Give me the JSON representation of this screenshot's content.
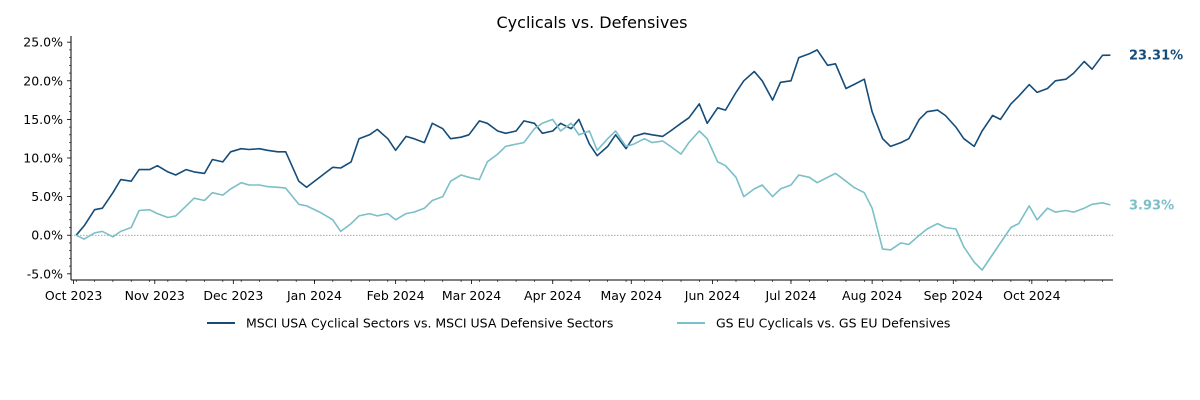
{
  "chart_data": {
    "type": "line",
    "title": "Cyclicals vs. Defensives",
    "xlabel": "",
    "ylabel": "",
    "y_tick_labels": [
      "-5.0%",
      "0.0%",
      "5.0%",
      "10.0%",
      "15.0%",
      "20.0%",
      "25.0%"
    ],
    "y_ticks": [
      -5,
      0,
      5,
      10,
      15,
      20,
      25
    ],
    "ylim": [
      -5.8,
      25.8
    ],
    "x_tick_labels": [
      "Oct 2023",
      "Nov 2023",
      "Dec 2023",
      "Jan 2024",
      "Feb 2024",
      "Mar 2024",
      "Apr 2024",
      "May 2024",
      "Jun 2024",
      "Jul 2024",
      "Aug 2024",
      "Sep 2024",
      "Oct 2024"
    ],
    "x_ticks": [
      "2023-10-01",
      "2023-11-01",
      "2023-12-01",
      "2024-01-01",
      "2024-02-01",
      "2024-03-01",
      "2024-04-01",
      "2024-05-01",
      "2024-06-01",
      "2024-07-01",
      "2024-08-01",
      "2024-09-01",
      "2024-10-01"
    ],
    "xlim": [
      "2023-09-30",
      "2024-11-01"
    ],
    "reference_line": {
      "y": 0,
      "style": "dotted"
    },
    "grid": false,
    "legend_position": "bottom",
    "series": [
      {
        "name": "MSCI USA Cyclical Sectors vs. MSCI USA Defensive Sectors",
        "color": "#154c79",
        "end_label": "23.31%",
        "points": [
          [
            "2023-10-02",
            0.0
          ],
          [
            "2023-10-05",
            1.2
          ],
          [
            "2023-10-09",
            3.3
          ],
          [
            "2023-10-12",
            3.5
          ],
          [
            "2023-10-16",
            5.5
          ],
          [
            "2023-10-19",
            7.2
          ],
          [
            "2023-10-23",
            7.0
          ],
          [
            "2023-10-26",
            8.5
          ],
          [
            "2023-10-30",
            8.5
          ],
          [
            "2023-11-02",
            9.0
          ],
          [
            "2023-11-06",
            8.2
          ],
          [
            "2023-11-09",
            7.8
          ],
          [
            "2023-11-13",
            8.5
          ],
          [
            "2023-11-16",
            8.2
          ],
          [
            "2023-11-20",
            8.0
          ],
          [
            "2023-11-23",
            9.8
          ],
          [
            "2023-11-27",
            9.5
          ],
          [
            "2023-11-30",
            10.8
          ],
          [
            "2023-12-04",
            11.2
          ],
          [
            "2023-12-07",
            11.1
          ],
          [
            "2023-12-11",
            11.2
          ],
          [
            "2023-12-14",
            11.0
          ],
          [
            "2023-12-18",
            10.8
          ],
          [
            "2023-12-21",
            10.8
          ],
          [
            "2023-12-26",
            7.0
          ],
          [
            "2023-12-29",
            6.2
          ],
          [
            "2024-01-03",
            7.5
          ],
          [
            "2024-01-08",
            8.8
          ],
          [
            "2024-01-11",
            8.7
          ],
          [
            "2024-01-15",
            9.5
          ],
          [
            "2024-01-18",
            12.5
          ],
          [
            "2024-01-22",
            13.0
          ],
          [
            "2024-01-25",
            13.7
          ],
          [
            "2024-01-29",
            12.5
          ],
          [
            "2024-02-01",
            11.0
          ],
          [
            "2024-02-05",
            12.8
          ],
          [
            "2024-02-08",
            12.5
          ],
          [
            "2024-02-12",
            12.0
          ],
          [
            "2024-02-15",
            14.5
          ],
          [
            "2024-02-19",
            13.8
          ],
          [
            "2024-02-22",
            12.5
          ],
          [
            "2024-02-26",
            12.7
          ],
          [
            "2024-02-29",
            13.0
          ],
          [
            "2024-03-04",
            14.8
          ],
          [
            "2024-03-07",
            14.5
          ],
          [
            "2024-03-11",
            13.5
          ],
          [
            "2024-03-14",
            13.2
          ],
          [
            "2024-03-18",
            13.5
          ],
          [
            "2024-03-21",
            14.8
          ],
          [
            "2024-03-25",
            14.5
          ],
          [
            "2024-03-28",
            13.2
          ],
          [
            "2024-04-01",
            13.5
          ],
          [
            "2024-04-04",
            14.5
          ],
          [
            "2024-04-08",
            13.8
          ],
          [
            "2024-04-11",
            15.0
          ],
          [
            "2024-04-15",
            11.8
          ],
          [
            "2024-04-18",
            10.3
          ],
          [
            "2024-04-22",
            11.5
          ],
          [
            "2024-04-25",
            13.0
          ],
          [
            "2024-04-29",
            11.2
          ],
          [
            "2024-05-02",
            12.8
          ],
          [
            "2024-05-06",
            13.2
          ],
          [
            "2024-05-09",
            13.0
          ],
          [
            "2024-05-13",
            12.8
          ],
          [
            "2024-05-16",
            13.5
          ],
          [
            "2024-05-20",
            14.5
          ],
          [
            "2024-05-23",
            15.2
          ],
          [
            "2024-05-27",
            17.0
          ],
          [
            "2024-05-30",
            14.5
          ],
          [
            "2024-06-03",
            16.5
          ],
          [
            "2024-06-06",
            16.2
          ],
          [
            "2024-06-10",
            18.5
          ],
          [
            "2024-06-13",
            20.0
          ],
          [
            "2024-06-17",
            21.2
          ],
          [
            "2024-06-20",
            20.0
          ],
          [
            "2024-06-24",
            17.5
          ],
          [
            "2024-06-27",
            19.8
          ],
          [
            "2024-07-01",
            20.0
          ],
          [
            "2024-07-04",
            23.0
          ],
          [
            "2024-07-08",
            23.5
          ],
          [
            "2024-07-11",
            24.0
          ],
          [
            "2024-07-15",
            22.0
          ],
          [
            "2024-07-18",
            22.2
          ],
          [
            "2024-07-22",
            19.0
          ],
          [
            "2024-07-25",
            19.5
          ],
          [
            "2024-07-29",
            20.2
          ],
          [
            "2024-08-01",
            16.0
          ],
          [
            "2024-08-05",
            12.5
          ],
          [
            "2024-08-08",
            11.5
          ],
          [
            "2024-08-12",
            12.0
          ],
          [
            "2024-08-15",
            12.5
          ],
          [
            "2024-08-19",
            15.0
          ],
          [
            "2024-08-22",
            16.0
          ],
          [
            "2024-08-26",
            16.2
          ],
          [
            "2024-08-29",
            15.5
          ],
          [
            "2024-09-02",
            14.0
          ],
          [
            "2024-09-05",
            12.5
          ],
          [
            "2024-09-09",
            11.5
          ],
          [
            "2024-09-12",
            13.5
          ],
          [
            "2024-09-16",
            15.5
          ],
          [
            "2024-09-19",
            15.0
          ],
          [
            "2024-09-23",
            17.0
          ],
          [
            "2024-09-26",
            18.0
          ],
          [
            "2024-09-30",
            19.5
          ],
          [
            "2024-10-03",
            18.5
          ],
          [
            "2024-10-07",
            19.0
          ],
          [
            "2024-10-10",
            20.0
          ],
          [
            "2024-10-14",
            20.2
          ],
          [
            "2024-10-17",
            21.0
          ],
          [
            "2024-10-21",
            22.5
          ],
          [
            "2024-10-24",
            21.5
          ],
          [
            "2024-10-28",
            23.3
          ],
          [
            "2024-10-31",
            23.31
          ]
        ]
      },
      {
        "name": "GS EU Cyclicals vs. GS EU Defensives",
        "color": "#7bbfc8",
        "end_label": "3.93%",
        "points": [
          [
            "2023-10-02",
            0.0
          ],
          [
            "2023-10-05",
            -0.5
          ],
          [
            "2023-10-09",
            0.3
          ],
          [
            "2023-10-12",
            0.5
          ],
          [
            "2023-10-16",
            -0.2
          ],
          [
            "2023-10-19",
            0.5
          ],
          [
            "2023-10-23",
            1.0
          ],
          [
            "2023-10-26",
            3.2
          ],
          [
            "2023-10-30",
            3.3
          ],
          [
            "2023-11-02",
            2.8
          ],
          [
            "2023-11-06",
            2.3
          ],
          [
            "2023-11-09",
            2.5
          ],
          [
            "2023-11-13",
            3.8
          ],
          [
            "2023-11-16",
            4.8
          ],
          [
            "2023-11-20",
            4.5
          ],
          [
            "2023-11-23",
            5.5
          ],
          [
            "2023-11-27",
            5.2
          ],
          [
            "2023-11-30",
            6.0
          ],
          [
            "2023-12-04",
            6.8
          ],
          [
            "2023-12-07",
            6.5
          ],
          [
            "2023-12-11",
            6.5
          ],
          [
            "2023-12-14",
            6.3
          ],
          [
            "2023-12-18",
            6.2
          ],
          [
            "2023-12-21",
            6.1
          ],
          [
            "2023-12-26",
            4.0
          ],
          [
            "2023-12-29",
            3.8
          ],
          [
            "2024-01-03",
            3.0
          ],
          [
            "2024-01-08",
            2.0
          ],
          [
            "2024-01-11",
            0.5
          ],
          [
            "2024-01-15",
            1.5
          ],
          [
            "2024-01-18",
            2.5
          ],
          [
            "2024-01-22",
            2.8
          ],
          [
            "2024-01-25",
            2.5
          ],
          [
            "2024-01-29",
            2.8
          ],
          [
            "2024-02-01",
            2.0
          ],
          [
            "2024-02-05",
            2.8
          ],
          [
            "2024-02-08",
            3.0
          ],
          [
            "2024-02-12",
            3.5
          ],
          [
            "2024-02-15",
            4.5
          ],
          [
            "2024-02-19",
            5.0
          ],
          [
            "2024-02-22",
            7.0
          ],
          [
            "2024-02-26",
            7.8
          ],
          [
            "2024-02-29",
            7.5
          ],
          [
            "2024-03-04",
            7.2
          ],
          [
            "2024-03-07",
            9.5
          ],
          [
            "2024-03-11",
            10.5
          ],
          [
            "2024-03-14",
            11.5
          ],
          [
            "2024-03-18",
            11.8
          ],
          [
            "2024-03-21",
            12.0
          ],
          [
            "2024-03-25",
            13.8
          ],
          [
            "2024-03-28",
            14.5
          ],
          [
            "2024-04-01",
            15.0
          ],
          [
            "2024-04-04",
            13.5
          ],
          [
            "2024-04-08",
            14.5
          ],
          [
            "2024-04-11",
            13.0
          ],
          [
            "2024-04-15",
            13.5
          ],
          [
            "2024-04-18",
            11.0
          ],
          [
            "2024-04-22",
            12.5
          ],
          [
            "2024-04-25",
            13.5
          ],
          [
            "2024-04-29",
            11.5
          ],
          [
            "2024-05-02",
            11.8
          ],
          [
            "2024-05-06",
            12.5
          ],
          [
            "2024-05-09",
            12.0
          ],
          [
            "2024-05-13",
            12.2
          ],
          [
            "2024-05-16",
            11.5
          ],
          [
            "2024-05-20",
            10.5
          ],
          [
            "2024-05-23",
            12.0
          ],
          [
            "2024-05-27",
            13.5
          ],
          [
            "2024-05-30",
            12.5
          ],
          [
            "2024-06-03",
            9.5
          ],
          [
            "2024-06-06",
            9.0
          ],
          [
            "2024-06-10",
            7.5
          ],
          [
            "2024-06-13",
            5.0
          ],
          [
            "2024-06-17",
            6.0
          ],
          [
            "2024-06-20",
            6.5
          ],
          [
            "2024-06-24",
            5.0
          ],
          [
            "2024-06-27",
            6.0
          ],
          [
            "2024-07-01",
            6.5
          ],
          [
            "2024-07-04",
            7.8
          ],
          [
            "2024-07-08",
            7.5
          ],
          [
            "2024-07-11",
            6.8
          ],
          [
            "2024-07-15",
            7.5
          ],
          [
            "2024-07-18",
            8.0
          ],
          [
            "2024-07-22",
            7.0
          ],
          [
            "2024-07-25",
            6.2
          ],
          [
            "2024-07-29",
            5.5
          ],
          [
            "2024-08-01",
            3.5
          ],
          [
            "2024-08-05",
            -1.8
          ],
          [
            "2024-08-08",
            -1.9
          ],
          [
            "2024-08-12",
            -1.0
          ],
          [
            "2024-08-15",
            -1.2
          ],
          [
            "2024-08-19",
            0.0
          ],
          [
            "2024-08-22",
            0.8
          ],
          [
            "2024-08-26",
            1.5
          ],
          [
            "2024-08-29",
            1.0
          ],
          [
            "2024-09-02",
            0.8
          ],
          [
            "2024-09-05",
            -1.5
          ],
          [
            "2024-09-09",
            -3.5
          ],
          [
            "2024-09-12",
            -4.5
          ],
          [
            "2024-09-16",
            -2.5
          ],
          [
            "2024-09-19",
            -1.0
          ],
          [
            "2024-09-23",
            1.0
          ],
          [
            "2024-09-26",
            1.5
          ],
          [
            "2024-09-30",
            3.8
          ],
          [
            "2024-10-03",
            2.0
          ],
          [
            "2024-10-07",
            3.5
          ],
          [
            "2024-10-10",
            3.0
          ],
          [
            "2024-10-14",
            3.2
          ],
          [
            "2024-10-17",
            3.0
          ],
          [
            "2024-10-21",
            3.5
          ],
          [
            "2024-10-24",
            4.0
          ],
          [
            "2024-10-28",
            4.2
          ],
          [
            "2024-10-31",
            3.93
          ]
        ]
      }
    ]
  }
}
